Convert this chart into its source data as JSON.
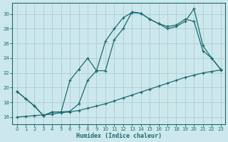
{
  "title": "",
  "xlabel": "Humidex (Indice chaleur)",
  "bg_color": "#cde8ec",
  "grid_color": "#aacdd3",
  "line_color": "#1a6b6e",
  "xlim": [
    -0.5,
    23.5
  ],
  "ylim": [
    15.0,
    31.5
  ],
  "xticks": [
    0,
    1,
    2,
    3,
    4,
    5,
    6,
    7,
    8,
    9,
    10,
    11,
    12,
    13,
    14,
    15,
    16,
    17,
    18,
    19,
    20,
    21,
    22,
    23
  ],
  "yticks": [
    16,
    18,
    20,
    22,
    24,
    26,
    28,
    30
  ],
  "line1_x": [
    0,
    1,
    2,
    3,
    4,
    5,
    6,
    7,
    8,
    9,
    10,
    11,
    12,
    13,
    14,
    15,
    16,
    17,
    18,
    19,
    20,
    21,
    22,
    23
  ],
  "line1_y": [
    19.5,
    18.5,
    17.5,
    16.2,
    16.7,
    16.7,
    21.0,
    22.5,
    24.0,
    22.3,
    26.3,
    28.0,
    29.5,
    30.2,
    30.1,
    29.3,
    28.7,
    28.0,
    28.3,
    29.0,
    30.7,
    25.7,
    24.0,
    22.5
  ],
  "line2_x": [
    0,
    1,
    2,
    3,
    4,
    5,
    6,
    7,
    8,
    9,
    10,
    11,
    12,
    13,
    14,
    15,
    16,
    17,
    18,
    19,
    20,
    21,
    22,
    23
  ],
  "line2_y": [
    19.5,
    18.5,
    17.5,
    16.2,
    16.7,
    16.7,
    16.8,
    17.8,
    21.0,
    22.3,
    22.3,
    26.5,
    28.0,
    30.3,
    30.1,
    29.3,
    28.7,
    28.3,
    28.5,
    29.3,
    29.0,
    25.0,
    24.0,
    22.5
  ],
  "line3_x": [
    0,
    1,
    2,
    3,
    4,
    5,
    6,
    7,
    8,
    9,
    10,
    11,
    12,
    13,
    14,
    15,
    16,
    17,
    18,
    19,
    20,
    21,
    22,
    23
  ],
  "line3_y": [
    16.0,
    16.1,
    16.2,
    16.3,
    16.4,
    16.6,
    16.7,
    16.9,
    17.2,
    17.5,
    17.8,
    18.2,
    18.6,
    19.0,
    19.4,
    19.8,
    20.2,
    20.6,
    21.0,
    21.4,
    21.7,
    22.0,
    22.2,
    22.4
  ]
}
